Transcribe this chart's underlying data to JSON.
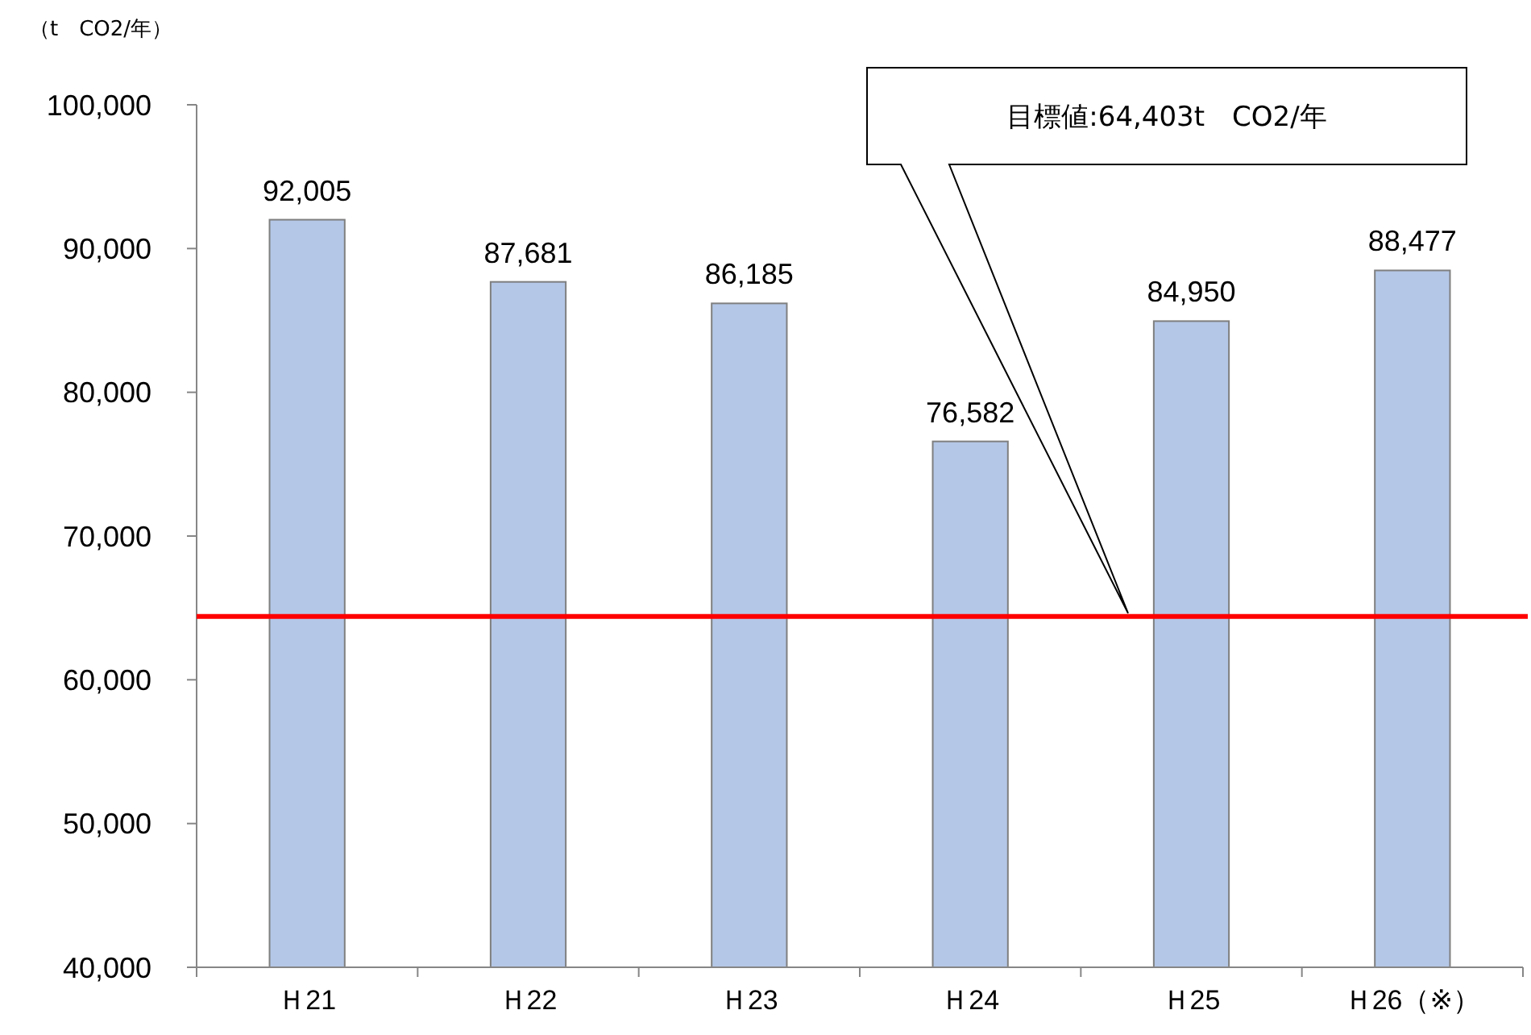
{
  "chart_data": {
    "type": "bar",
    "ylabel": "（t　CO2/年）",
    "categories": [
      "Ｈ21",
      "Ｈ22",
      "Ｈ23",
      "Ｈ24",
      "Ｈ25",
      "Ｈ26（※）"
    ],
    "values": [
      92005,
      87681,
      86185,
      76582,
      84950,
      88477
    ],
    "color": "#b4c7e7",
    "ylim": [
      40000,
      100000
    ],
    "yticks": [
      {
        "value": 40000,
        "label": "40,000"
      },
      {
        "value": 50000,
        "label": "50,000"
      },
      {
        "value": 60000,
        "label": "60,000"
      },
      {
        "value": 70000,
        "label": "70,000"
      },
      {
        "value": 80000,
        "label": "80,000"
      },
      {
        "value": 90000,
        "label": "90,000"
      },
      {
        "value": 100000,
        "label": "100,000"
      }
    ],
    "value_labels": [
      "92,005",
      "87,681",
      "86,185",
      "76,582",
      "84,950",
      "88,477"
    ],
    "grid": false,
    "annotations": [
      "目標値:64,403t　CO2/年"
    ],
    "ref_lines": [
      {
        "axis": "y",
        "value": 64403,
        "color": "#ff0000"
      }
    ]
  }
}
